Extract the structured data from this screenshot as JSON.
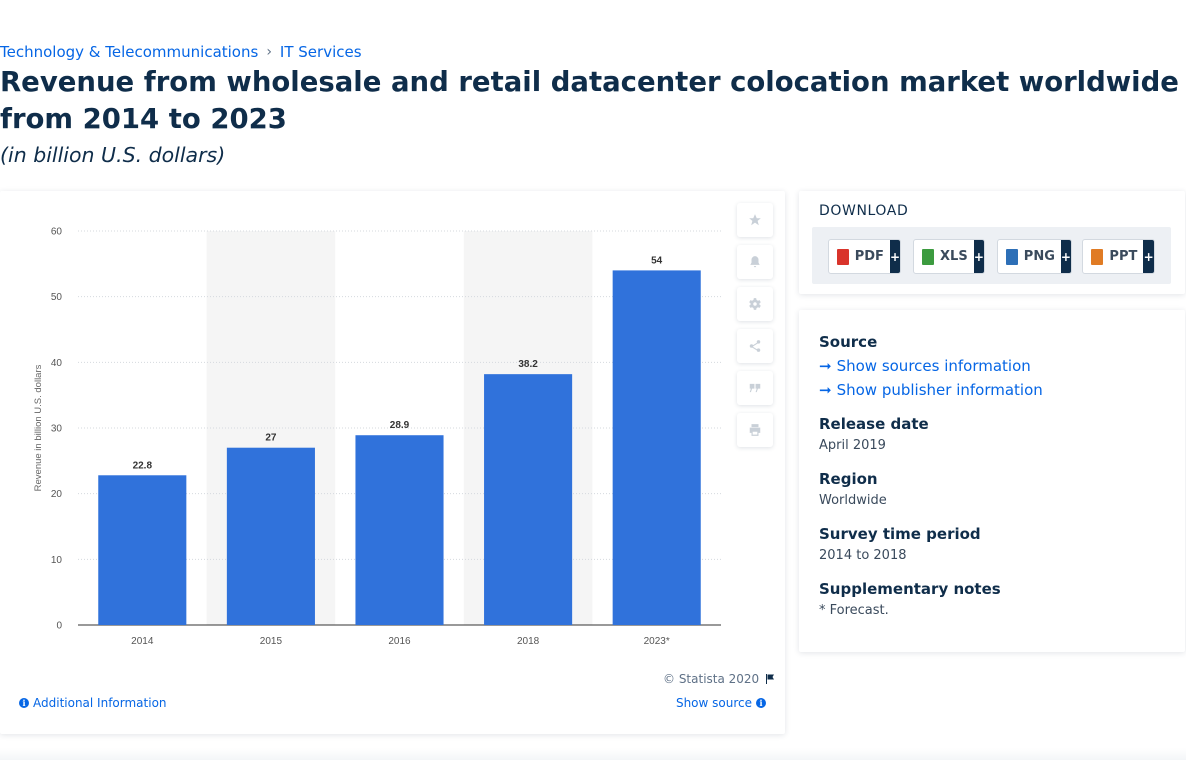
{
  "breadcrumb": {
    "items": [
      "Technology & Telecommunications",
      "IT Services"
    ],
    "separator": "›"
  },
  "title": "Revenue from wholesale and retail datacenter colocation market worldwide from 2014 to 2023",
  "subtitle": "(in billion U.S. dollars)",
  "chart_data": {
    "type": "bar",
    "categories": [
      "2014",
      "2015",
      "2016",
      "2018",
      "2023*"
    ],
    "values": [
      22.8,
      27,
      28.9,
      38.2,
      54
    ],
    "data_labels": [
      "22.8",
      "27",
      "28.9",
      "38.2",
      "54"
    ],
    "ylabel": "Revenue in billion U.S. dollars",
    "xlabel": "",
    "ylim": [
      0,
      60
    ],
    "yticks": [
      "0",
      "10",
      "20",
      "30",
      "40",
      "50",
      "60"
    ],
    "grid": true,
    "bar_color": "#3072db",
    "alt_band_color": "#f5f5f5"
  },
  "chart_footer": {
    "copyright": "© Statista 2020",
    "additional_info": "Additional Information",
    "show_source": "Show source"
  },
  "toolbar": {
    "icons": [
      "star-icon",
      "bell-icon",
      "gear-icon",
      "share-icon",
      "quote-icon",
      "print-icon"
    ]
  },
  "download": {
    "title": "DOWNLOAD",
    "buttons": [
      {
        "label": "PDF",
        "color": "#d9342b"
      },
      {
        "label": "XLS",
        "color": "#3c9b3f"
      },
      {
        "label": "PNG",
        "color": "#2d6fb7"
      },
      {
        "label": "PPT",
        "color": "#e07b24"
      }
    ],
    "plus": "+"
  },
  "info": {
    "source_heading": "Source",
    "show_sources": "Show sources information",
    "show_publisher": "Show publisher information",
    "release_heading": "Release date",
    "release_value": "April 2019",
    "region_heading": "Region",
    "region_value": "Worldwide",
    "survey_heading": "Survey time period",
    "survey_value": "2014 to 2018",
    "notes_heading": "Supplementary notes",
    "notes_value": "* Forecast."
  }
}
